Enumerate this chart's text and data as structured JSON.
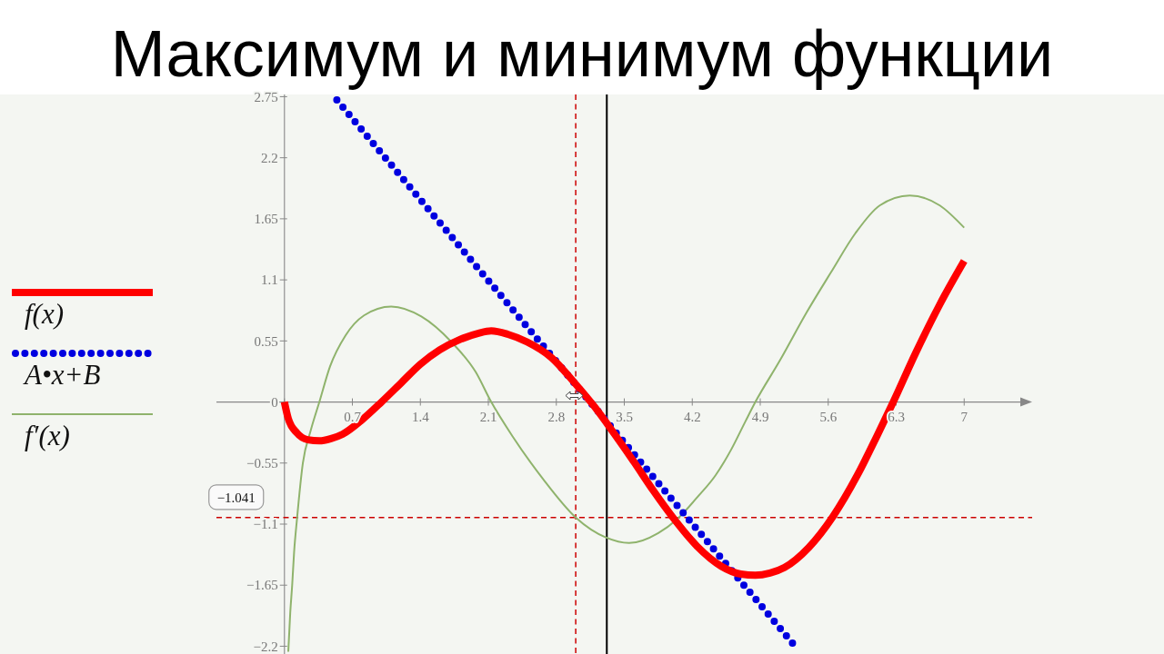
{
  "chart_data": {
    "type": "line",
    "title": "Максимум и минимум функции",
    "series": [
      {
        "name": "f(x)",
        "color": "#ff0000",
        "x": [
          0,
          0.04,
          0.13,
          0.24,
          0.36,
          0.48,
          0.6,
          0.8,
          1,
          1.2,
          1.4,
          1.6,
          1.8,
          2,
          2.13,
          2.3,
          2.5,
          2.75,
          3,
          3.2,
          3.4,
          3.6,
          3.8,
          4,
          4.25,
          4.5,
          4.7,
          4.85,
          5,
          5.15,
          5.4,
          5.65,
          5.9,
          6.1,
          6.27,
          6.5,
          6.75,
          7
        ],
        "values": [
          0,
          -0.15,
          -0.28,
          -0.34,
          -0.35,
          -0.33,
          -0.29,
          -0.16,
          0,
          0.17,
          0.34,
          0.47,
          0.56,
          0.62,
          0.64,
          0.61,
          0.54,
          0.4,
          0.16,
          -0.05,
          -0.29,
          -0.54,
          -0.8,
          -1.04,
          -1.3,
          -1.48,
          -1.55,
          -1.56,
          -1.54,
          -1.49,
          -1.31,
          -1.03,
          -0.66,
          -0.31,
          0,
          0.44,
          0.88,
          1.27
        ]
      },
      {
        "name": "A•x+B",
        "color": "#0000e0",
        "line_style": "dotted",
        "x": [
          0.54,
          5.25
        ],
        "values": [
          2.72,
          -2.19
        ]
      },
      {
        "name": "f′(x)",
        "color": "#8fb36c",
        "x": [
          0.04,
          0.06,
          0.08,
          0.1,
          0.13,
          0.19,
          0.27,
          0.36,
          0.47,
          0.63,
          0.82,
          1.1,
          1.41,
          1.72,
          1.97,
          2.13,
          2.35,
          2.66,
          3,
          3.31,
          3.55,
          3.85,
          4.05,
          4.25,
          4.44,
          4.6,
          4.75,
          4.85,
          5.1,
          5.38,
          5.63,
          5.88,
          6.13,
          6.44,
          6.75,
          7
        ],
        "values": [
          -2.25,
          -1.9,
          -1.65,
          -1.35,
          -1.05,
          -0.55,
          -0.26,
          0,
          0.32,
          0.6,
          0.78,
          0.86,
          0.77,
          0.54,
          0.27,
          0,
          -0.31,
          -0.69,
          -1.04,
          -1.22,
          -1.27,
          -1.18,
          -1.05,
          -0.86,
          -0.66,
          -0.43,
          -0.17,
          0,
          0.37,
          0.81,
          1.17,
          1.52,
          1.77,
          1.86,
          1.77,
          1.57
        ]
      }
    ],
    "xlim": [
      -0.7,
      7.7
    ],
    "xticks": [
      {
        "value": 0,
        "label": null
      },
      0.7,
      1.4,
      2.1,
      2.8,
      3.5,
      4.2,
      4.9,
      5.6,
      6.3,
      7
    ],
    "ylim": [
      -2.27,
      2.77
    ],
    "yticks": [
      {
        "value": -2.2,
        "label": "−2.2"
      },
      {
        "value": -1.65,
        "label": "−1.65"
      },
      {
        "value": -1.1,
        "label": "−1.1"
      },
      {
        "value": -0.55,
        "label": "−0.55"
      },
      0,
      0.55,
      1.1,
      1.65,
      2.2,
      2.75
    ],
    "ref_lines": [
      {
        "axis": "x",
        "value": 3,
        "color": "#cc0000",
        "line_style": "dashed"
      },
      {
        "axis": "x",
        "value": 3.32,
        "color": "#000000",
        "line_style": "solid"
      },
      {
        "axis": "y",
        "value": -1.041,
        "label": "−1.041",
        "color": "#cc0000",
        "line_style": "dashed"
      }
    ],
    "legend": "left"
  }
}
